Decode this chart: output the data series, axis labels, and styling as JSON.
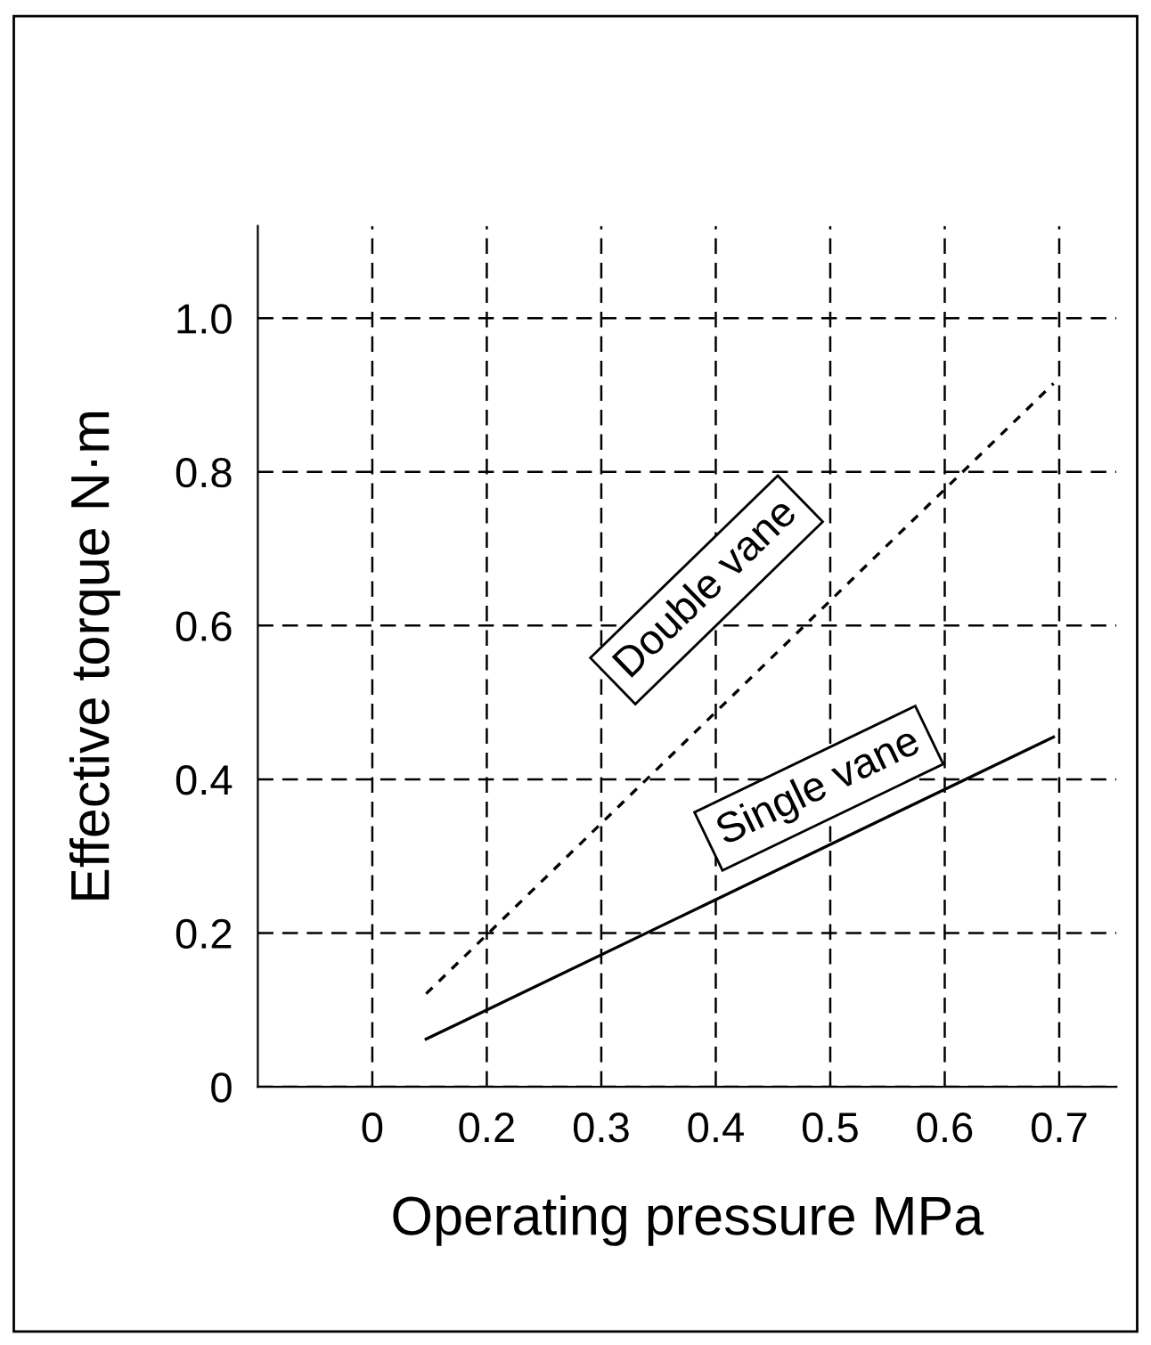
{
  "chart_data": {
    "type": "line",
    "xlabel": "Operating pressure MPa",
    "ylabel": "Effective torque N·m",
    "xlim": [
      0,
      0.75
    ],
    "ylim": [
      0,
      1.12
    ],
    "xticks": [
      {
        "value": 0.1,
        "label": "0"
      },
      0.2,
      0.3,
      0.4,
      0.5,
      0.6,
      0.7
    ],
    "yticks": [
      {
        "value": 0,
        "label": "0"
      },
      0.2,
      0.4,
      0.6,
      0.8,
      {
        "value": 1.0,
        "label": "1.0"
      }
    ],
    "grid": true,
    "marker": "none",
    "x": [
      0.147,
      0.695
    ],
    "series": [
      {
        "name": "Double vane",
        "color": "#000000",
        "line_style": "dotted",
        "values": [
          0.121,
          0.915
        ]
      },
      {
        "name": "Single vane",
        "color": "#000000",
        "line_style": "solid",
        "values": [
          0.062,
          0.455
        ]
      }
    ]
  }
}
